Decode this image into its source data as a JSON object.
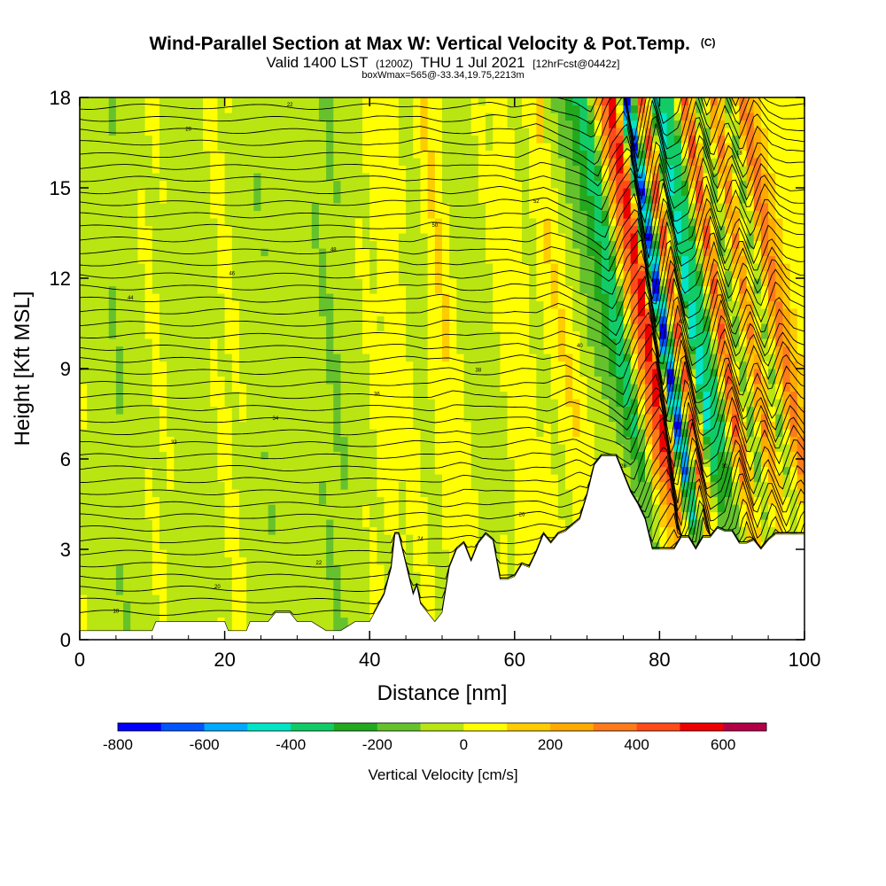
{
  "chart_data": {
    "type": "heatmap",
    "title_main": "Wind-Parallel Section at Max W: Vertical Velocity & Pot.Temp.",
    "title_mark": "(C)",
    "subtitle_a": "Valid 1400 LST",
    "subtitle_b": "(1200Z)",
    "subtitle_c": "THU 1 Jul 2021",
    "subtitle_d": "[12hrFcst@0442z]",
    "subtitle_line2": "boxWmax=565@-33.34,19.75,2213m",
    "xlabel": "Distance [nm]",
    "ylabel": "Height [Kft MSL]",
    "xlim": [
      0,
      100
    ],
    "ylim": [
      0,
      18
    ],
    "x_ticks": [
      0,
      20,
      40,
      60,
      80,
      100
    ],
    "y_ticks": [
      0,
      3,
      6,
      9,
      12,
      15,
      18
    ],
    "colorbar": {
      "title": "Vertical Velocity [cm/s]",
      "range": [
        -800,
        700
      ],
      "tick_values": [
        -800,
        -600,
        -400,
        -200,
        0,
        200,
        400,
        600
      ],
      "colors": [
        "#0000ff",
        "#0055ff",
        "#00aaff",
        "#00e5c8",
        "#11cc66",
        "#22a91e",
        "#66c22c",
        "#b9e512",
        "#ffff00",
        "#ffcc00",
        "#ffaa00",
        "#ff7a1a",
        "#ff4a1a",
        "#ee0000",
        "#b30045"
      ]
    },
    "velocity_field": {
      "description_free": true,
      "column_x_nm": [
        0,
        5,
        10,
        15,
        20,
        25,
        30,
        35,
        40,
        44,
        47,
        50,
        53,
        56,
        60,
        63,
        66,
        69,
        72,
        74,
        76,
        78,
        80,
        82,
        84,
        86,
        88,
        90,
        92,
        94,
        96,
        98,
        100
      ],
      "mid_level_cm_s": [
        -10,
        -80,
        20,
        -60,
        30,
        -70,
        -40,
        -90,
        20,
        60,
        -40,
        120,
        -30,
        -20,
        60,
        -30,
        130,
        -60,
        -220,
        -400,
        260,
        600,
        -780,
        500,
        -450,
        -300,
        470,
        -200,
        350,
        -150,
        400,
        120,
        30
      ]
    },
    "terrain": {
      "x_nm": [
        0,
        10,
        10.5,
        20,
        20.5,
        23,
        23.5,
        26,
        27,
        29,
        30,
        32,
        34,
        36,
        38,
        40,
        42,
        43,
        43.5,
        44,
        46,
        46.5,
        47,
        48,
        49,
        50,
        51,
        52,
        53,
        54,
        55,
        56,
        57,
        58,
        59,
        60,
        61,
        62,
        63,
        64,
        65,
        66,
        67,
        68,
        69,
        70,
        71,
        72,
        73,
        74,
        75,
        76,
        77,
        78,
        79,
        80,
        81,
        82,
        83,
        84,
        85,
        86,
        87,
        88,
        89,
        90,
        91,
        92,
        93,
        94,
        95,
        96,
        97,
        98,
        100
      ],
      "height_kft": [
        0.3,
        0.3,
        0.6,
        0.6,
        0.3,
        0.3,
        0.6,
        0.6,
        0.9,
        0.9,
        0.6,
        0.6,
        0.3,
        0.3,
        0.6,
        0.6,
        1.5,
        2.4,
        3.5,
        3.5,
        1.5,
        1.8,
        1.2,
        0.9,
        0.6,
        0.9,
        2.4,
        3.0,
        3.2,
        2.6,
        3.2,
        3.5,
        3.3,
        2.0,
        2.0,
        2.1,
        2.5,
        2.4,
        2.9,
        3.5,
        3.2,
        3.5,
        3.6,
        3.8,
        4.0,
        4.8,
        5.8,
        6.1,
        6.1,
        6.1,
        5.5,
        4.9,
        4.5,
        4.0,
        3.0,
        3.0,
        3.0,
        3.0,
        3.4,
        3.4,
        3.0,
        3.4,
        3.4,
        3.7,
        3.6,
        3.6,
        3.2,
        3.2,
        3.3,
        3.0,
        3.3,
        3.5,
        3.5,
        3.5,
        3.5
      ]
    },
    "theta_contours": {
      "count": 44,
      "label_values": [
        "18",
        "20",
        "22",
        "24",
        "26",
        "28",
        "30",
        "32",
        "34",
        "36",
        "38",
        "40",
        "42",
        "44",
        "46",
        "48",
        "50",
        "52",
        "54"
      ]
    }
  }
}
